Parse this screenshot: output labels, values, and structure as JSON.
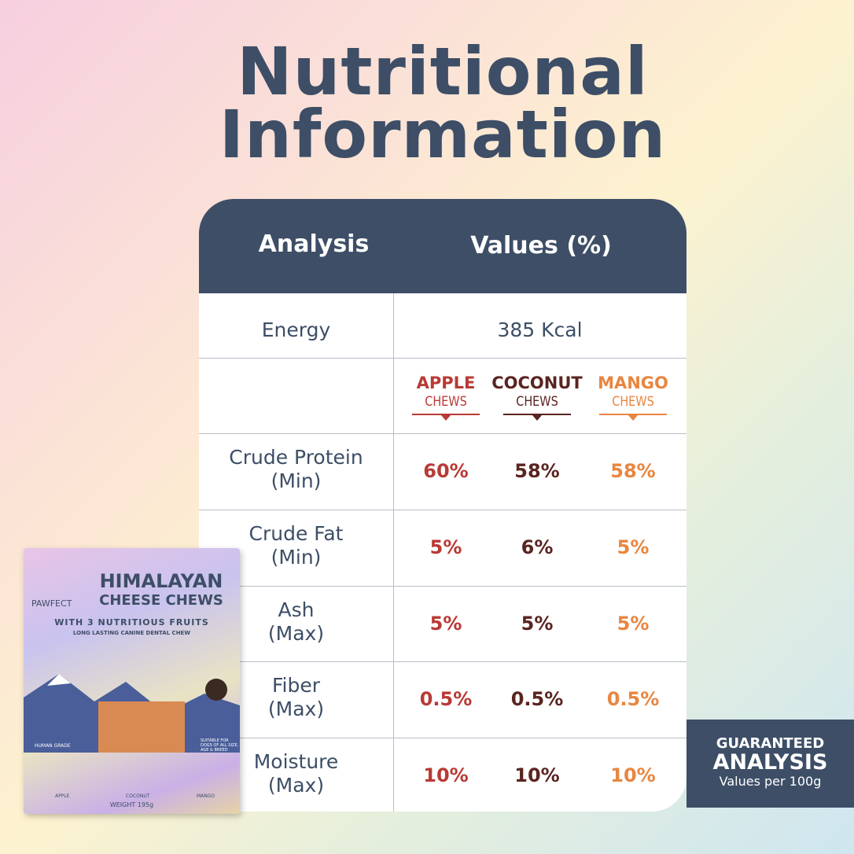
{
  "title": [
    "Nutritional",
    "Information"
  ],
  "table": {
    "header": [
      "Analysis",
      "Values (%)"
    ],
    "energy": {
      "label": "Energy",
      "value": "385 Kcal"
    },
    "flavors": [
      {
        "name": "APPLE",
        "sub": "CHEWS"
      },
      {
        "name": "COCONUT",
        "sub": "CHEWS"
      },
      {
        "name": "MANGO",
        "sub": "CHEWS"
      }
    ],
    "rows": [
      {
        "label": [
          "Crude Protein",
          "(Min)"
        ],
        "values": [
          "60%",
          "58%",
          "58%"
        ]
      },
      {
        "label": [
          "Crude Fat",
          "(Min)"
        ],
        "values": [
          "5%",
          "6%",
          "5%"
        ]
      },
      {
        "label": [
          "Ash",
          "(Max)"
        ],
        "values": [
          "5%",
          "5%",
          "5%"
        ]
      },
      {
        "label": [
          "Fiber",
          "(Max)"
        ],
        "values": [
          "0.5%",
          "0.5%",
          "0.5%"
        ]
      },
      {
        "label": [
          "Moisture",
          "(Max)"
        ],
        "values": [
          "10%",
          "10%",
          "10%"
        ]
      }
    ]
  },
  "badge": [
    "GUARANTEED",
    "ANALYSIS",
    "Values per 100g"
  ],
  "product": {
    "brand": "PAWFECT",
    "name": [
      "HIMALAYAN",
      "CHEESE CHEWS"
    ],
    "tagline": "WITH 3 NUTRITIOUS FRUITS",
    "subline": "LONG LASTING CANINE DENTAL CHEW",
    "grade": "HUMAN GRADE",
    "suitable": "SUITABLE FOR DOGS OF ALL SIZE, AGE & BREED",
    "fruits": [
      "APPLE",
      "COCONUT",
      "MANGO"
    ],
    "weight": "WEIGHT 195g"
  }
}
